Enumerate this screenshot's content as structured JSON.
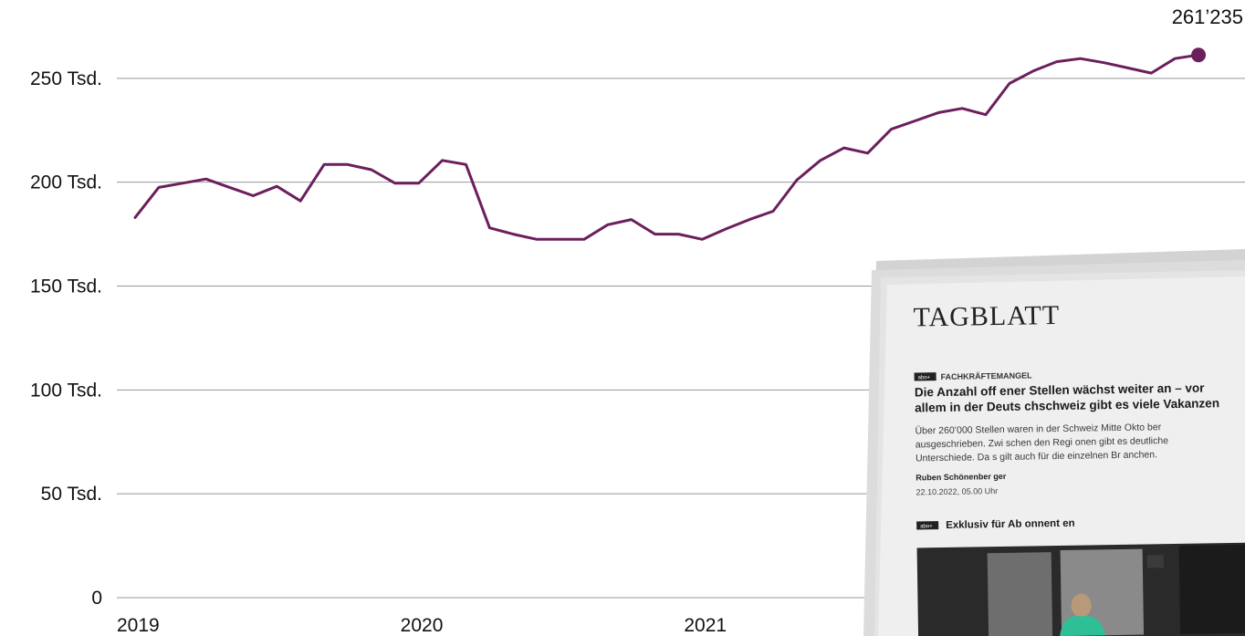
{
  "chart_data": {
    "type": "line",
    "x": [
      "2019-01",
      "2019-02",
      "2019-03",
      "2019-04",
      "2019-05",
      "2019-06",
      "2019-07",
      "2019-08",
      "2019-09",
      "2019-10",
      "2019-11",
      "2019-12",
      "2020-01",
      "2020-02",
      "2020-03",
      "2020-04",
      "2020-05",
      "2020-06",
      "2020-07",
      "2020-08",
      "2020-09",
      "2020-10",
      "2020-11",
      "2020-12",
      "2021-01",
      "2021-02",
      "2021-03",
      "2021-04",
      "2021-05",
      "2021-06",
      "2021-07",
      "2021-08",
      "2021-09",
      "2021-10",
      "2021-11",
      "2021-12",
      "2022-01",
      "2022-02",
      "2022-03",
      "2022-04",
      "2022-05",
      "2022-06",
      "2022-07",
      "2022-08",
      "2022-09",
      "2022-10"
    ],
    "series": [
      {
        "values": [
          183000,
          197500,
          199500,
          201500,
          197500,
          193500,
          198000,
          191000,
          208500,
          208500,
          206000,
          199500,
          199500,
          210500,
          208500,
          178000,
          175000,
          172500,
          172500,
          172500,
          179500,
          182000,
          175000,
          175000,
          172500,
          177500,
          182000,
          186000,
          201000,
          210500,
          216500,
          214000,
          225500,
          229500,
          233500,
          235500,
          232500,
          247500,
          253500,
          258000,
          259500,
          257500,
          255000,
          252500,
          259500,
          261235
        ]
      }
    ],
    "ylim": [
      0,
      265000
    ],
    "yticks": [
      0,
      50000,
      100000,
      150000,
      200000,
      250000
    ],
    "ytick_labels": [
      "0",
      "50 Tsd.",
      "100 Tsd.",
      "150 Tsd.",
      "200 Tsd.",
      "250 Tsd."
    ],
    "xtick_positions": [
      "2019-01",
      "2020-01",
      "2021-01"
    ],
    "xtick_labels": [
      "2019",
      "2020",
      "2021"
    ],
    "end_value_label": "261’235",
    "grid": true,
    "colors": {
      "line": "#6b1f5c",
      "grid": "#999999",
      "text": "#111111"
    }
  },
  "newspaper": {
    "masthead": "TAGBLATT",
    "badge": "abo+",
    "kicker": "FACHKRÄFTEMANGEL",
    "headline_line1": "Die Anzahl off ener Stellen wächst weiter an – vor",
    "headline_line2": "allem in der Deuts chschweiz gibt es viele Vakanzen",
    "lead_line1": "Über 260’000 Stellen waren in der Schweiz Mitte Okto ber",
    "lead_line2": "ausgeschrieben. Zwi schen den Regi onen gibt es deutliche",
    "lead_line3": "Unterschiede. Da s gilt auch für die einzelnen Br anchen.",
    "author": "Ruben Schönenber ger",
    "date": "22.10.2022, 05.00 Uhr",
    "exclusive": "Exklusiv für Ab onnent en"
  }
}
